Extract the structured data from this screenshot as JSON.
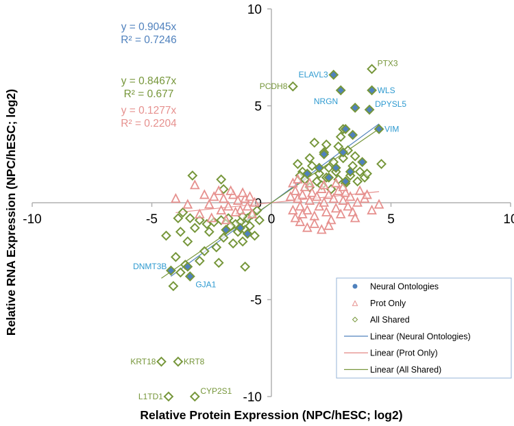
{
  "chart_data": {
    "type": "scatter",
    "title": "",
    "xlabel": "Relative Protein Expression (NPC/hESC; log2)",
    "ylabel": "Relative RNA Expression (NPC/hESC; log2)",
    "xlim": [
      -10,
      10
    ],
    "ylim": [
      -10,
      10
    ],
    "x_ticks": [
      "-10",
      "-5",
      "0",
      "5",
      "10"
    ],
    "y_ticks": [
      "10",
      "5",
      "0",
      "-5",
      "-10"
    ],
    "x_tick_values": [
      -10,
      -5,
      0,
      5,
      10
    ],
    "y_tick_values": [
      10,
      5,
      0,
      -5,
      -10
    ],
    "grid": false,
    "legend_position": "bottom-right",
    "colors": {
      "neural": "#4f81bd",
      "prot_only": "#e6908e",
      "all_shared": "#76963a",
      "neural_label": "#2e9ad0",
      "axis": "#b0b0b0"
    },
    "series": [
      {
        "name": "All Shared",
        "marker": "diamond-open",
        "points": [
          [
            4.2,
            6.9
          ],
          [
            0.9,
            6.0
          ],
          [
            4.6,
            2.0
          ],
          [
            -3.9,
            -8.2
          ],
          [
            -4.6,
            -8.2
          ],
          [
            -4.3,
            -10.0
          ],
          [
            -3.2,
            -10.0
          ],
          [
            -3.3,
            1.4
          ],
          [
            -2.1,
            1.2
          ],
          [
            -2.0,
            0.7
          ],
          [
            1.8,
            3.1
          ],
          [
            2.3,
            3.0
          ],
          [
            2.8,
            2.9
          ],
          [
            3.2,
            2.7
          ],
          [
            2.2,
            2.6
          ],
          [
            1.6,
            2.3
          ],
          [
            1.1,
            2.0
          ],
          [
            1.3,
            1.6
          ],
          [
            1.7,
            1.9
          ],
          [
            2.0,
            1.5
          ],
          [
            2.4,
            1.8
          ],
          [
            2.6,
            2.1
          ],
          [
            3.0,
            2.3
          ],
          [
            3.4,
            1.9
          ],
          [
            3.7,
            1.6
          ],
          [
            3.9,
            1.3
          ],
          [
            1.4,
            1.2
          ],
          [
            1.9,
            1.1
          ],
          [
            2.3,
            1.3
          ],
          [
            2.8,
            1.2
          ],
          [
            3.3,
            1.4
          ],
          [
            3.6,
            1.1
          ],
          [
            2.1,
            0.9
          ],
          [
            2.7,
            1.6
          ],
          [
            3.1,
            1.0
          ],
          [
            1.2,
            1.4
          ],
          [
            1.6,
            0.8
          ],
          [
            3.5,
            2.4
          ],
          [
            4.0,
            1.5
          ],
          [
            2.5,
            0.7
          ],
          [
            2.9,
            3.4
          ],
          [
            3.0,
            3.8
          ],
          [
            -0.6,
            -0.4
          ],
          [
            -0.8,
            -0.6
          ],
          [
            -1.0,
            -0.8
          ],
          [
            -1.2,
            -0.7
          ],
          [
            -1.3,
            -1.0
          ],
          [
            -1.5,
            -1.1
          ],
          [
            -1.7,
            -1.2
          ],
          [
            -0.9,
            -1.2
          ],
          [
            -1.1,
            -1.4
          ],
          [
            -1.4,
            -1.5
          ],
          [
            -1.8,
            -0.8
          ],
          [
            -2.1,
            -0.9
          ],
          [
            -2.4,
            -1.0
          ],
          [
            -2.7,
            -1.1
          ],
          [
            -3.0,
            -0.9
          ],
          [
            -3.4,
            -0.8
          ],
          [
            -3.7,
            -0.5
          ],
          [
            -3.9,
            -0.8
          ],
          [
            -3.2,
            -1.3
          ],
          [
            -2.6,
            -1.5
          ],
          [
            -2.0,
            -1.8
          ],
          [
            -1.6,
            -2.1
          ],
          [
            -1.2,
            -2.0
          ],
          [
            -2.3,
            -2.3
          ],
          [
            -2.8,
            -2.5
          ],
          [
            -3.5,
            -2.0
          ],
          [
            -3.8,
            -1.5
          ],
          [
            -4.0,
            -2.8
          ],
          [
            -3.6,
            -3.2
          ],
          [
            -3.0,
            -3.0
          ],
          [
            -3.8,
            -3.6
          ],
          [
            -4.1,
            -4.3
          ],
          [
            -4.4,
            -1.7
          ],
          [
            -2.2,
            -3.1
          ],
          [
            -1.1,
            -3.3
          ],
          [
            -0.7,
            -1.7
          ],
          [
            -0.5,
            -0.9
          ]
        ]
      },
      {
        "name": "Prot Only",
        "marker": "triangle-open",
        "points": [
          [
            -4.0,
            0.2
          ],
          [
            -3.2,
            0.9
          ],
          [
            -2.8,
            0.4
          ],
          [
            -2.6,
            -0.1
          ],
          [
            -2.4,
            0.3
          ],
          [
            -2.2,
            0.6
          ],
          [
            -2.0,
            0.2
          ],
          [
            -1.8,
            -0.2
          ],
          [
            -1.6,
            0.4
          ],
          [
            -1.4,
            0.1
          ],
          [
            -1.3,
            -0.4
          ],
          [
            -1.1,
            0.2
          ],
          [
            -1.0,
            -0.2
          ],
          [
            -0.9,
            0.3
          ],
          [
            -0.8,
            -0.6
          ],
          [
            -1.2,
            0.5
          ],
          [
            -1.7,
            0.6
          ],
          [
            -2.5,
            -0.8
          ],
          [
            -1.9,
            -0.9
          ],
          [
            -3.5,
            -0.1
          ],
          [
            -3.0,
            -0.6
          ],
          [
            -0.7,
            0.0
          ],
          [
            -1.5,
            -0.5
          ],
          [
            -2.1,
            -0.4
          ],
          [
            0.9,
            1.0
          ],
          [
            1.0,
            0.6
          ],
          [
            1.1,
            0.2
          ],
          [
            1.2,
            -0.2
          ],
          [
            1.3,
            0.4
          ],
          [
            1.4,
            0.8
          ],
          [
            1.5,
            -0.4
          ],
          [
            1.6,
            0.1
          ],
          [
            1.7,
            0.5
          ],
          [
            1.8,
            -0.7
          ],
          [
            1.9,
            0.3
          ],
          [
            2.0,
            -0.2
          ],
          [
            2.1,
            0.7
          ],
          [
            2.2,
            0.0
          ],
          [
            2.3,
            -0.5
          ],
          [
            2.4,
            0.4
          ],
          [
            2.5,
            -0.9
          ],
          [
            2.6,
            0.2
          ],
          [
            2.7,
            -0.3
          ],
          [
            2.8,
            0.6
          ],
          [
            2.9,
            -0.6
          ],
          [
            3.0,
            0.1
          ],
          [
            3.1,
            0.5
          ],
          [
            3.2,
            -0.2
          ],
          [
            3.3,
            0.3
          ],
          [
            3.4,
            -0.5
          ],
          [
            3.6,
            0.0
          ],
          [
            3.7,
            0.6
          ],
          [
            3.9,
            0.2
          ],
          [
            4.2,
            -0.4
          ],
          [
            4.5,
            -0.1
          ],
          [
            4.0,
            0.4
          ],
          [
            1.2,
            -1.0
          ],
          [
            1.5,
            -1.3
          ],
          [
            1.8,
            -1.1
          ],
          [
            2.1,
            -1.4
          ],
          [
            2.4,
            -1.2
          ],
          [
            1.0,
            -0.8
          ],
          [
            3.5,
            -0.8
          ],
          [
            0.8,
            0.3
          ],
          [
            1.1,
            1.2
          ],
          [
            1.6,
            1.0
          ],
          [
            2.2,
            0.9
          ],
          [
            2.7,
            1.0
          ],
          [
            3.0,
            0.8
          ],
          [
            0.9,
            -0.4
          ],
          [
            1.3,
            -0.6
          ]
        ]
      },
      {
        "name": "Neural Ontologies",
        "marker": "diamond-filled",
        "points": [
          [
            2.6,
            6.6
          ],
          [
            2.9,
            5.8
          ],
          [
            4.2,
            5.8
          ],
          [
            3.5,
            4.9
          ],
          [
            4.1,
            4.8
          ],
          [
            4.5,
            3.8
          ],
          [
            3.1,
            3.8
          ],
          [
            3.4,
            3.5
          ],
          [
            3.0,
            2.6
          ],
          [
            3.8,
            2.1
          ],
          [
            2.2,
            2.5
          ],
          [
            2.7,
            1.8
          ],
          [
            3.3,
            1.6
          ],
          [
            2.4,
            1.3
          ],
          [
            2.0,
            1.8
          ],
          [
            3.1,
            1.1
          ],
          [
            1.5,
            1.5
          ],
          [
            -4.2,
            -3.5
          ],
          [
            -3.5,
            -3.3
          ],
          [
            -3.4,
            -3.8
          ],
          [
            -1.3,
            -1.3
          ],
          [
            -1.9,
            -1.4
          ],
          [
            -1.0,
            -1.6
          ]
        ]
      }
    ],
    "trendlines": [
      {
        "name": "Linear (Neural Ontologies)",
        "slope": 0.9045,
        "intercept": 0,
        "r2": 0.7246,
        "x_range": [
          -4.2,
          4.5
        ]
      },
      {
        "name": "Linear (Prot Only)",
        "slope": 0.1277,
        "intercept": 0,
        "r2": 0.2204,
        "x_range": [
          -4.0,
          4.5
        ]
      },
      {
        "name": "Linear (All Shared)",
        "slope": 0.8467,
        "intercept": 0,
        "r2": 0.677,
        "x_range": [
          -4.6,
          4.6
        ]
      }
    ],
    "equations": [
      {
        "series": "Neural Ontologies",
        "line1": "y = 0.9045x",
        "line2": "R² = 0.7246"
      },
      {
        "series": "All Shared",
        "line1": "y = 0.8467x",
        "line2": "R² = 0.677"
      },
      {
        "series": "Prot Only",
        "line1": "y = 0.1277x",
        "line2": "R² = 0.2204"
      }
    ],
    "gene_labels": [
      {
        "text": "ELAVL3",
        "x": 2.6,
        "y": 6.6,
        "series": "Neural Ontologies",
        "side": "left"
      },
      {
        "text": "PTX3",
        "x": 4.2,
        "y": 6.9,
        "series": "All Shared",
        "side": "right-up"
      },
      {
        "text": "PCDH8",
        "x": 0.9,
        "y": 6.0,
        "series": "All Shared",
        "side": "left"
      },
      {
        "text": "NRGN",
        "x": 2.9,
        "y": 5.8,
        "series": "Neural Ontologies",
        "side": "left-down"
      },
      {
        "text": "WLS",
        "x": 4.2,
        "y": 5.8,
        "series": "Neural Ontologies",
        "side": "right"
      },
      {
        "text": "DPYSL5",
        "x": 4.1,
        "y": 4.8,
        "series": "Neural Ontologies",
        "side": "right-up"
      },
      {
        "text": "VIM",
        "x": 4.5,
        "y": 3.8,
        "series": "Neural Ontologies",
        "side": "right"
      },
      {
        "text": "DNMT3B",
        "x": -4.2,
        "y": -3.5,
        "series": "Neural Ontologies",
        "side": "left-up"
      },
      {
        "text": "GJA1",
        "x": -3.4,
        "y": -3.8,
        "series": "Neural Ontologies",
        "side": "right-down"
      },
      {
        "text": "KRT18",
        "x": -4.6,
        "y": -8.2,
        "series": "All Shared",
        "side": "left"
      },
      {
        "text": "KRT8",
        "x": -3.9,
        "y": -8.2,
        "series": "All Shared",
        "side": "right"
      },
      {
        "text": "L1TD1",
        "x": -4.3,
        "y": -10.0,
        "series": "All Shared",
        "side": "left"
      },
      {
        "text": "CYP2S1",
        "x": -3.2,
        "y": -10.0,
        "series": "All Shared",
        "side": "right-up"
      }
    ],
    "legend": [
      {
        "label": "Neural Ontologies",
        "kind": "marker-circle-filled",
        "color": "#4f81bd"
      },
      {
        "label": "Prot Only",
        "kind": "marker-triangle-open",
        "color": "#e6908e"
      },
      {
        "label": "All Shared",
        "kind": "marker-diamond-open",
        "color": "#76963a"
      },
      {
        "label": "Linear (Neural Ontologies)",
        "kind": "line",
        "color": "#4f81bd"
      },
      {
        "label": "Linear (Prot Only)",
        "kind": "line",
        "color": "#e6908e"
      },
      {
        "label": "Linear (All Shared)",
        "kind": "line",
        "color": "#76963a"
      }
    ]
  }
}
